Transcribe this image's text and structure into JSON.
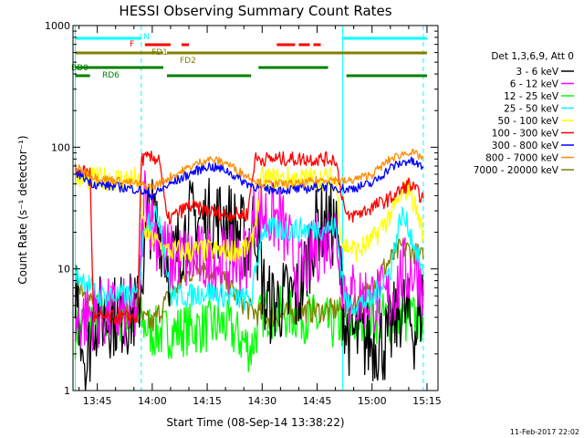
{
  "chart_data": {
    "type": "line",
    "title": "HESSI Observing Summary Count Rates",
    "xlabel": "Start Time (08-Sep-14 13:38:22)",
    "ylabel": "Count Rate (s⁻¹ detector⁻¹)",
    "y_scale": "log",
    "ylim": [
      1,
      1000
    ],
    "xlim": [
      "13:38:22",
      "15:18:00"
    ],
    "x_ticks": [
      "13:45",
      "14:00",
      "14:15",
      "14:30",
      "14:45",
      "15:00",
      "15:15"
    ],
    "y_ticks": [
      "1",
      "10",
      "100",
      "1000"
    ],
    "grid": false,
    "legend_position": "right",
    "legend_title": "Det 1,3,6,9, Att 0",
    "footer_date": "11-Feb-2017 22:02",
    "series": [
      {
        "name": "3 - 6 keV",
        "color": "#000000",
        "points": [
          [
            "13:39",
            8
          ],
          [
            "13:42",
            1.5
          ],
          [
            "13:44",
            4
          ],
          [
            "13:56",
            4.3
          ],
          [
            "13:59",
            28
          ],
          [
            "14:02",
            22
          ],
          [
            "14:05",
            10
          ],
          [
            "14:10",
            25
          ],
          [
            "14:20",
            26
          ],
          [
            "14:26",
            17
          ],
          [
            "14:28",
            25
          ],
          [
            "14:31",
            5
          ],
          [
            "14:40",
            6
          ],
          [
            "14:45",
            25
          ],
          [
            "14:50",
            22
          ],
          [
            "14:53",
            3
          ],
          [
            "14:57",
            2.6
          ],
          [
            "15:04",
            2.5
          ],
          [
            "15:08",
            5
          ],
          [
            "15:12",
            3
          ],
          [
            "15:14",
            6
          ]
        ]
      },
      {
        "name": "6 - 12 keV",
        "color": "#ff00ff",
        "points": [
          [
            "13:39",
            3.5
          ],
          [
            "13:42",
            4.2
          ],
          [
            "13:56",
            4.3
          ],
          [
            "13:58",
            40
          ],
          [
            "14:00",
            25
          ],
          [
            "14:02",
            16
          ],
          [
            "14:05",
            12
          ],
          [
            "14:12",
            12
          ],
          [
            "14:20",
            11.5
          ],
          [
            "14:26",
            12
          ],
          [
            "14:28",
            30
          ],
          [
            "14:35",
            25
          ],
          [
            "14:40",
            9
          ],
          [
            "14:45",
            15
          ],
          [
            "14:50",
            21
          ],
          [
            "14:53",
            6
          ],
          [
            "15:05",
            5.5
          ],
          [
            "15:08",
            9
          ],
          [
            "15:12",
            10
          ],
          [
            "15:14",
            8
          ]
        ]
      },
      {
        "name": "12 - 25 keV",
        "color": "#00ff00",
        "points": [
          [
            "13:39",
            3
          ],
          [
            "13:42",
            4
          ],
          [
            "13:56",
            4
          ],
          [
            "14:00",
            3
          ],
          [
            "14:04",
            3
          ],
          [
            "14:10",
            3.2
          ],
          [
            "14:20",
            3.5
          ],
          [
            "14:27",
            2.2
          ],
          [
            "14:30",
            4.5
          ],
          [
            "14:40",
            4.2
          ],
          [
            "14:48",
            3.5
          ],
          [
            "14:53",
            3.5
          ],
          [
            "15:00",
            4
          ],
          [
            "15:10",
            3.8
          ],
          [
            "15:14",
            4
          ]
        ]
      },
      {
        "name": "25 - 50 keV",
        "color": "#00ffff",
        "points": [
          [
            "13:39",
            9
          ],
          [
            "13:42",
            8
          ],
          [
            "13:45",
            6
          ],
          [
            "13:56",
            6
          ],
          [
            "13:58",
            25
          ],
          [
            "14:02",
            27
          ],
          [
            "14:05",
            6
          ],
          [
            "14:10",
            6
          ],
          [
            "14:15",
            6.5
          ],
          [
            "14:20",
            6
          ],
          [
            "14:27",
            5.5
          ],
          [
            "14:30",
            21
          ],
          [
            "14:40",
            21
          ],
          [
            "14:50",
            22
          ],
          [
            "14:53",
            5
          ],
          [
            "15:00",
            5.5
          ],
          [
            "15:05",
            10
          ],
          [
            "15:08",
            28
          ],
          [
            "15:10",
            22
          ],
          [
            "15:14",
            9
          ]
        ]
      },
      {
        "name": "50 - 100 keV",
        "color": "#ffff00",
        "points": [
          [
            "13:39",
            55
          ],
          [
            "13:45",
            55
          ],
          [
            "13:56",
            55
          ],
          [
            "13:58",
            20
          ],
          [
            "14:04",
            14
          ],
          [
            "14:10",
            14
          ],
          [
            "14:20",
            14
          ],
          [
            "14:27",
            15
          ],
          [
            "14:30",
            55
          ],
          [
            "14:40",
            55
          ],
          [
            "14:50",
            55
          ],
          [
            "14:52",
            16
          ],
          [
            "14:56",
            14
          ],
          [
            "15:00",
            17
          ],
          [
            "15:05",
            28
          ],
          [
            "15:08",
            40
          ],
          [
            "15:10",
            48
          ],
          [
            "15:14",
            20
          ]
        ]
      },
      {
        "name": "100 - 300 keV",
        "color": "#ff0000",
        "points": [
          [
            "13:39",
            65
          ],
          [
            "13:43",
            62
          ],
          [
            "13:44",
            4
          ],
          [
            "13:56",
            4
          ],
          [
            "13:57",
            80
          ],
          [
            "14:02",
            82
          ],
          [
            "14:04",
            25
          ],
          [
            "14:10",
            33
          ],
          [
            "14:15",
            30
          ],
          [
            "14:20",
            28
          ],
          [
            "14:26",
            28
          ],
          [
            "14:28",
            80
          ],
          [
            "14:40",
            80
          ],
          [
            "14:50",
            80
          ],
          [
            "14:53",
            26
          ],
          [
            "14:58",
            30
          ],
          [
            "15:05",
            38
          ],
          [
            "15:10",
            50
          ],
          [
            "15:14",
            38
          ]
        ]
      },
      {
        "name": "300 - 800 keV",
        "color": "#0000ff",
        "points": [
          [
            "13:39",
            62
          ],
          [
            "13:42",
            55
          ],
          [
            "13:44",
            50
          ],
          [
            "13:56",
            45
          ],
          [
            "14:00",
            40
          ],
          [
            "14:04",
            48
          ],
          [
            "14:10",
            60
          ],
          [
            "14:15",
            70
          ],
          [
            "14:20",
            65
          ],
          [
            "14:25",
            52
          ],
          [
            "14:30",
            45
          ],
          [
            "14:40",
            45
          ],
          [
            "14:48",
            48
          ],
          [
            "14:53",
            45
          ],
          [
            "15:00",
            50
          ],
          [
            "15:05",
            68
          ],
          [
            "15:10",
            78
          ],
          [
            "15:14",
            68
          ]
        ]
      },
      {
        "name": "800 - 7000 keV",
        "color": "#ff8c00",
        "points": [
          [
            "13:39",
            68
          ],
          [
            "13:42",
            62
          ],
          [
            "13:44",
            57
          ],
          [
            "13:56",
            50
          ],
          [
            "14:00",
            47
          ],
          [
            "14:04",
            55
          ],
          [
            "14:10",
            68
          ],
          [
            "14:15",
            80
          ],
          [
            "14:20",
            75
          ],
          [
            "14:25",
            60
          ],
          [
            "14:30",
            50
          ],
          [
            "14:40",
            50
          ],
          [
            "14:48",
            55
          ],
          [
            "14:53",
            52
          ],
          [
            "15:00",
            60
          ],
          [
            "15:05",
            80
          ],
          [
            "15:10",
            92
          ],
          [
            "15:14",
            82
          ]
        ]
      },
      {
        "name": "7000 - 20000 keV",
        "color": "#808000",
        "points": [
          [
            "13:39",
            9
          ],
          [
            "13:41",
            7
          ],
          [
            "13:44",
            5
          ],
          [
            "13:48",
            4.2
          ],
          [
            "13:56",
            4
          ],
          [
            "14:00",
            3.5
          ],
          [
            "14:03",
            5
          ],
          [
            "14:08",
            8
          ],
          [
            "14:13",
            11
          ],
          [
            "14:18",
            9
          ],
          [
            "14:23",
            6
          ],
          [
            "14:27",
            4.5
          ],
          [
            "14:32",
            4
          ],
          [
            "14:40",
            4.5
          ],
          [
            "14:48",
            4.5
          ],
          [
            "14:53",
            4.8
          ],
          [
            "14:58",
            6
          ],
          [
            "15:03",
            10
          ],
          [
            "15:08",
            15
          ],
          [
            "15:11",
            14
          ],
          [
            "15:14",
            12
          ]
        ]
      }
    ],
    "state_bars": [
      {
        "label": "N",
        "color": "#00ffff",
        "segments": [
          [
            "13:39",
            "13:57"
          ],
          [
            "14:52",
            "15:15"
          ]
        ]
      },
      {
        "label": "F",
        "color": "#ff0000",
        "segments": [
          [
            "13:58",
            "14:05"
          ],
          [
            "14:08",
            "14:10"
          ],
          [
            "14:34",
            "14:39"
          ],
          [
            "14:40",
            "14:43"
          ],
          [
            "14:44",
            "14:46"
          ]
        ]
      },
      {
        "label": "FD1",
        "color": "#808000",
        "segments": [
          [
            "13:39",
            "14:03"
          ]
        ]
      },
      {
        "label": "FD2",
        "color": "#808000",
        "segments": [
          [
            "14:04",
            "15:15"
          ]
        ]
      },
      {
        "label": "BD0",
        "color": "#008000",
        "segments": [
          [
            "13:39",
            "14:03"
          ],
          [
            "14:29",
            "14:48"
          ]
        ]
      },
      {
        "label": "RD6",
        "color": "#008000",
        "segments": [
          [
            "13:39",
            "13:43"
          ],
          [
            "14:04",
            "14:27"
          ],
          [
            "14:53",
            "15:15"
          ]
        ]
      }
    ],
    "night_lines": [
      "13:39",
      "13:57",
      "14:52",
      "15:14"
    ]
  }
}
